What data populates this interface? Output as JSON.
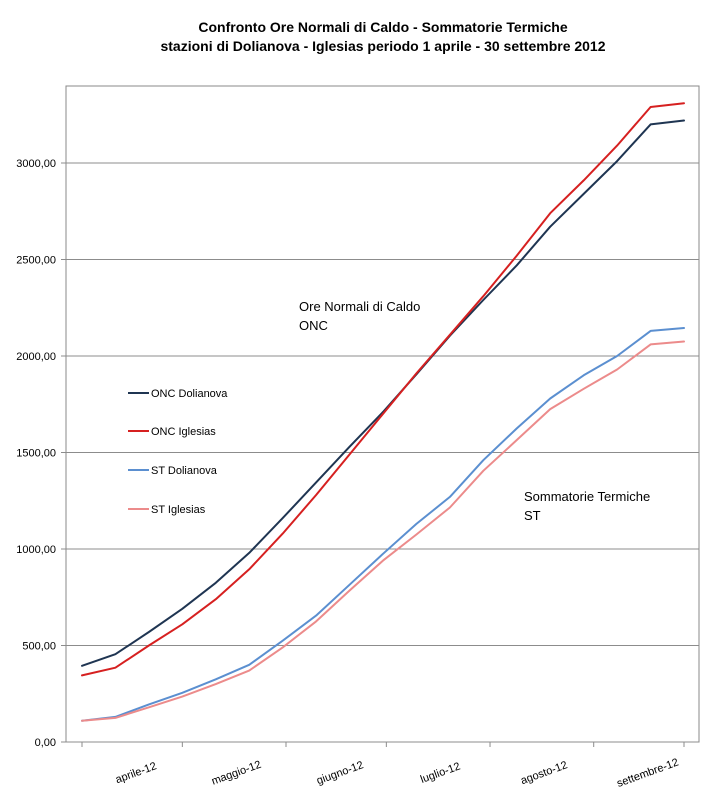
{
  "chart_data": {
    "type": "line",
    "title": "Confronto    Ore Normali di Caldo -  Sommatorie Termiche",
    "subtitle": "stazioni di Dolianova -  Iglesias    periodo  1 aprile -  30 settembre 2012",
    "xlabel": "",
    "ylabel": "",
    "ylim": [
      0,
      3400
    ],
    "yticks": [
      0,
      500,
      1000,
      1500,
      2000,
      2500,
      3000
    ],
    "ytick_labels": [
      "0,00",
      "500,00",
      "1000,00",
      "1500,00",
      "2000,00",
      "2500,00",
      "3000,00"
    ],
    "xlim": [
      0,
      180
    ],
    "x_tick_positions": [
      15,
      45,
      76,
      106,
      137,
      168
    ],
    "x_tick_labels": [
      "aprile-12",
      "maggio-12",
      "giugno-12",
      "luglio-12",
      "agosto-12",
      "settembre-12"
    ],
    "grid": true,
    "legend_position": "left-middle",
    "x": [
      0,
      10,
      20,
      30,
      40,
      50,
      60,
      70,
      80,
      90,
      100,
      110,
      120,
      130,
      140,
      150,
      160,
      170,
      180
    ],
    "series": [
      {
        "name": "ONC Dolianova",
        "color": "#1f3552",
        "values": [
          395,
          455,
          570,
          690,
          825,
          980,
          1160,
          1345,
          1530,
          1710,
          1905,
          2105,
          2290,
          2470,
          2670,
          2840,
          3010,
          3200,
          3220
        ]
      },
      {
        "name": "ONC Iglesias",
        "color": "#d62020",
        "values": [
          345,
          385,
          500,
          610,
          740,
          895,
          1080,
          1280,
          1490,
          1700,
          1910,
          2110,
          2310,
          2520,
          2740,
          2910,
          3090,
          3290,
          3310
        ]
      },
      {
        "name": "ST Dolianova",
        "color": "#5b8fd0",
        "values": [
          110,
          130,
          195,
          255,
          325,
          400,
          525,
          655,
          815,
          975,
          1130,
          1270,
          1460,
          1625,
          1780,
          1900,
          2000,
          2130,
          2145
        ]
      },
      {
        "name": "ST Iglesias",
        "color": "#ec8b8b",
        "values": [
          110,
          125,
          180,
          235,
          300,
          370,
          490,
          625,
          785,
          940,
          1075,
          1215,
          1405,
          1565,
          1725,
          1830,
          1930,
          2060,
          2075
        ]
      }
    ],
    "annotations": [
      {
        "lines": [
          "Ore Normali di Caldo",
          "ONC"
        ]
      },
      {
        "lines": [
          "Sommatorie Termiche",
          "ST"
        ]
      }
    ]
  }
}
